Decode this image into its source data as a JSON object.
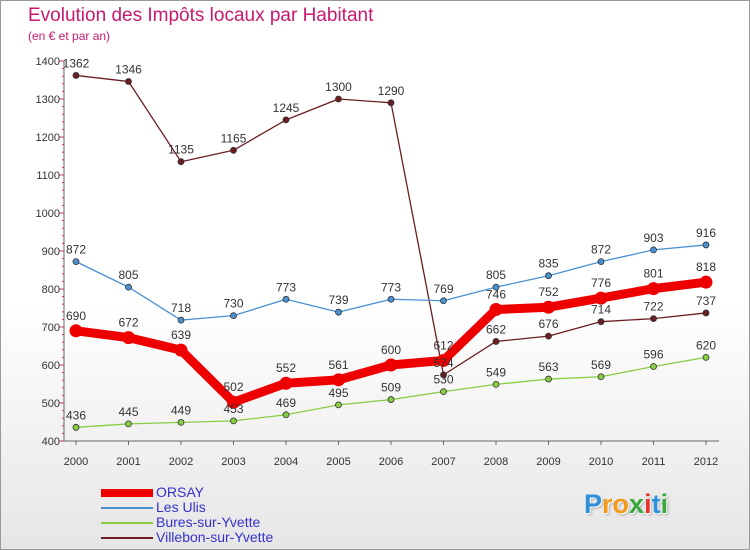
{
  "header": {
    "title": "Evolution des Impôts locaux par Habitant",
    "subtitle": "(en € et par an)"
  },
  "colors": {
    "title": "#c8196e",
    "axis": "#666666",
    "legend_text": "#3333cc"
  },
  "chart_data": {
    "type": "line",
    "title": "Evolution des Impôts locaux par Habitant",
    "subtitle": "(en € et par an)",
    "xlabel": "",
    "ylabel": "",
    "x": [
      "2000",
      "2001",
      "2002",
      "2003",
      "2004",
      "2005",
      "2006",
      "2007",
      "2008",
      "2009",
      "2010",
      "2011",
      "2012"
    ],
    "ylim": [
      400,
      1400
    ],
    "yticks": [
      "400",
      "500",
      "600",
      "700",
      "800",
      "900",
      "1000",
      "1100",
      "1200",
      "1300",
      "1400"
    ],
    "grid": false,
    "legend_position": "bottom-left",
    "series": [
      {
        "name": "Villebon-sur-Yvette",
        "color": "#6b1e22",
        "values": [
          1362,
          1346,
          1135,
          1165,
          1245,
          1300,
          1290,
          574,
          662,
          676,
          714,
          722,
          737
        ]
      },
      {
        "name": "Les Ulis",
        "color": "#4a90d0",
        "values": [
          872,
          805,
          718,
          730,
          773,
          739,
          773,
          769,
          805,
          835,
          872,
          903,
          916
        ]
      },
      {
        "name": "Bures-sur-Yvette",
        "color": "#88cc44",
        "values": [
          436,
          445,
          449,
          453,
          469,
          495,
          509,
          530,
          549,
          563,
          569,
          596,
          620
        ]
      },
      {
        "name": "ORSAY",
        "color": "#ee0000",
        "values": [
          690,
          672,
          639,
          502,
          552,
          561,
          600,
          612,
          746,
          752,
          776,
          801,
          818
        ]
      }
    ],
    "labels": {
      "Villebon-sur-Yvette": [
        "1362",
        "1346",
        "1135",
        "1165",
        "1245",
        "1300",
        "1290",
        "574",
        "662",
        "676",
        "714",
        "722",
        "737"
      ],
      "Les Ulis": [
        "872",
        "805",
        "718",
        "730",
        "773",
        "739",
        "773",
        "769",
        "805",
        "835",
        "872",
        "903",
        "916"
      ],
      "Bures-sur-Yvette": [
        "436",
        "445",
        "449",
        "453",
        "469",
        "495",
        "509",
        "530",
        "549",
        "563",
        "569",
        "596",
        "620"
      ],
      "ORSAY": [
        "690",
        "672",
        "639",
        "502",
        "552",
        "561",
        "600",
        "612",
        "746",
        "752",
        "776",
        "801",
        "818"
      ]
    }
  },
  "legend": [
    {
      "label": "ORSAY",
      "color": "#ee0000"
    },
    {
      "label": "Les Ulis",
      "color": "#4a90d0"
    },
    {
      "label": "Bures-sur-Yvette",
      "color": "#88cc44"
    },
    {
      "label": "Villebon-sur-Yvette",
      "color": "#6b1e22"
    }
  ],
  "logo": {
    "letters": [
      "P",
      "r",
      "o",
      "x",
      "i",
      "t",
      "i"
    ],
    "colors": [
      "#2f8fd8",
      "#f39a1e",
      "#f39a1e",
      "#3aa83a",
      "#e8342a",
      "#2f8fd8",
      "#3aa83a"
    ]
  }
}
